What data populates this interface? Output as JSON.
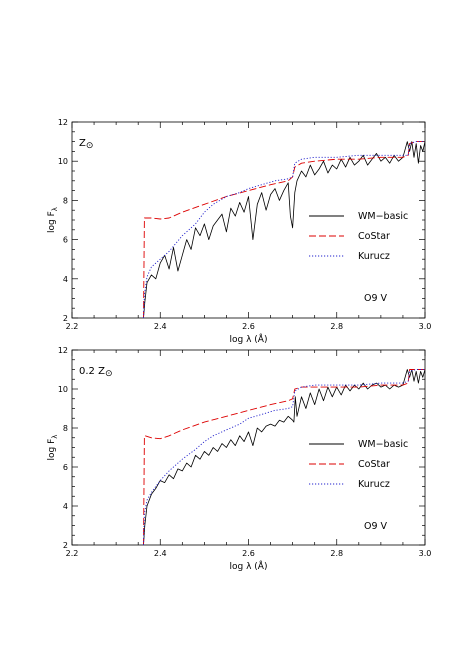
{
  "chart_data": [
    {
      "type": "line",
      "metallicity": {
        "prefix": "",
        "symbol": "Z",
        "sun": "⊙"
      },
      "spectral_type": "O9 V",
      "xlabel": "log  λ (Å)",
      "ylabel": {
        "main": "log F",
        "sub": "λ"
      },
      "xlim": [
        2.2,
        3.0
      ],
      "ylim": [
        2,
        12
      ],
      "xticks": [
        "2.2",
        "2.4",
        "2.6",
        "2.8",
        "3.0"
      ],
      "yticks": [
        "2",
        "4",
        "6",
        "8",
        "10",
        "12"
      ],
      "legend_position": "right",
      "series": [
        {
          "name": "WM−basic",
          "color": "#000000",
          "style": "solid",
          "x": [
            2.362,
            2.365,
            2.37,
            2.38,
            2.39,
            2.4,
            2.41,
            2.42,
            2.43,
            2.44,
            2.45,
            2.46,
            2.47,
            2.48,
            2.49,
            2.5,
            2.51,
            2.52,
            2.53,
            2.54,
            2.55,
            2.56,
            2.57,
            2.58,
            2.59,
            2.6,
            2.61,
            2.62,
            2.63,
            2.64,
            2.65,
            2.66,
            2.67,
            2.68,
            2.69,
            2.695,
            2.7,
            2.705,
            2.71,
            2.72,
            2.73,
            2.74,
            2.75,
            2.76,
            2.77,
            2.78,
            2.79,
            2.8,
            2.81,
            2.82,
            2.83,
            2.84,
            2.85,
            2.86,
            2.87,
            2.88,
            2.89,
            2.9,
            2.91,
            2.92,
            2.93,
            2.94,
            2.95,
            2.96,
            2.965,
            2.97,
            2.975,
            2.98,
            2.985,
            2.99,
            2.995,
            3.0
          ],
          "y": [
            2.0,
            2.8,
            3.8,
            4.2,
            4.0,
            4.8,
            5.2,
            4.5,
            5.6,
            4.4,
            5.2,
            6.0,
            5.5,
            6.6,
            6.2,
            6.8,
            6.0,
            6.7,
            7.0,
            7.3,
            6.4,
            7.6,
            7.2,
            7.9,
            7.4,
            8.2,
            6.0,
            7.8,
            8.4,
            7.5,
            8.3,
            8.6,
            8.0,
            8.5,
            8.9,
            7.2,
            6.6,
            8.4,
            9.0,
            9.5,
            9.2,
            9.8,
            9.3,
            9.6,
            10.0,
            9.4,
            9.8,
            9.6,
            10.1,
            9.7,
            10.2,
            9.8,
            10.0,
            10.3,
            9.8,
            10.1,
            10.4,
            10.0,
            10.2,
            9.9,
            10.3,
            10.0,
            10.2,
            11.0,
            10.5,
            11.0,
            10.2,
            10.9,
            9.9,
            10.8,
            10.5,
            11.0
          ]
        },
        {
          "name": "CoStar",
          "color": "#dd0000",
          "style": "dashed",
          "x": [
            2.362,
            2.364,
            2.366,
            2.38,
            2.4,
            2.42,
            2.45,
            2.5,
            2.55,
            2.6,
            2.65,
            2.69,
            2.7,
            2.705,
            2.72,
            2.75,
            2.8,
            2.85,
            2.9,
            2.95,
            2.962,
            2.965,
            2.98,
            3.0
          ],
          "y": [
            2.0,
            7.1,
            7.1,
            7.1,
            7.05,
            7.1,
            7.4,
            7.8,
            8.2,
            8.5,
            8.8,
            9.0,
            9.2,
            9.7,
            9.9,
            10.0,
            10.1,
            10.1,
            10.2,
            10.2,
            10.3,
            10.9,
            11.0,
            11.0
          ]
        },
        {
          "name": "Kurucz",
          "color": "#2222cc",
          "style": "dotted",
          "x": [
            2.362,
            2.364,
            2.37,
            2.38,
            2.4,
            2.42,
            2.45,
            2.48,
            2.5,
            2.52,
            2.55,
            2.58,
            2.6,
            2.63,
            2.66,
            2.69,
            2.7,
            2.705,
            2.72,
            2.75,
            2.8,
            2.85,
            2.9,
            2.95,
            2.962,
            2.965,
            2.98,
            3.0
          ],
          "y": [
            2.0,
            3.2,
            4.1,
            4.6,
            5.0,
            5.4,
            6.2,
            6.8,
            7.4,
            7.8,
            8.2,
            8.4,
            8.6,
            8.8,
            9.0,
            9.1,
            9.2,
            9.9,
            10.1,
            10.2,
            10.2,
            10.3,
            10.3,
            10.3,
            10.3,
            10.9,
            11.0,
            11.0
          ]
        }
      ]
    },
    {
      "type": "line",
      "metallicity": {
        "prefix": "0.2 ",
        "symbol": "Z",
        "sun": "⊙"
      },
      "spectral_type": "O9 V",
      "xlabel": "log  λ (Å)",
      "ylabel": {
        "main": "log F",
        "sub": "λ"
      },
      "xlim": [
        2.2,
        3.0
      ],
      "ylim": [
        2,
        12
      ],
      "xticks": [
        "2.2",
        "2.4",
        "2.6",
        "2.8",
        "3.0"
      ],
      "yticks": [
        "2",
        "4",
        "6",
        "8",
        "10",
        "12"
      ],
      "legend_position": "right",
      "series": [
        {
          "name": "WM−basic",
          "color": "#000000",
          "style": "solid",
          "x": [
            2.362,
            2.365,
            2.37,
            2.38,
            2.39,
            2.4,
            2.41,
            2.42,
            2.43,
            2.44,
            2.45,
            2.46,
            2.47,
            2.48,
            2.49,
            2.5,
            2.51,
            2.52,
            2.53,
            2.54,
            2.55,
            2.56,
            2.57,
            2.58,
            2.59,
            2.6,
            2.61,
            2.62,
            2.63,
            2.64,
            2.65,
            2.66,
            2.67,
            2.68,
            2.69,
            2.7,
            2.703,
            2.706,
            2.71,
            2.72,
            2.73,
            2.74,
            2.75,
            2.76,
            2.77,
            2.78,
            2.79,
            2.8,
            2.81,
            2.82,
            2.83,
            2.84,
            2.85,
            2.86,
            2.87,
            2.88,
            2.89,
            2.9,
            2.91,
            2.92,
            2.93,
            2.94,
            2.95,
            2.96,
            2.965,
            2.97,
            2.975,
            2.98,
            2.985,
            2.99,
            2.995,
            3.0
          ],
          "y": [
            2.0,
            3.0,
            4.0,
            4.6,
            4.9,
            5.3,
            5.2,
            5.6,
            5.4,
            5.9,
            5.8,
            6.2,
            6.0,
            6.6,
            6.4,
            6.8,
            6.6,
            7.0,
            6.8,
            7.2,
            7.0,
            7.4,
            7.1,
            7.6,
            7.3,
            7.8,
            7.1,
            8.0,
            7.8,
            8.1,
            8.2,
            8.1,
            8.4,
            8.3,
            8.6,
            8.4,
            8.3,
            9.6,
            8.6,
            9.6,
            9.0,
            9.8,
            9.2,
            10.0,
            9.4,
            10.1,
            9.6,
            10.1,
            9.7,
            10.2,
            9.9,
            10.2,
            10.0,
            10.3,
            10.0,
            10.2,
            10.3,
            10.1,
            10.2,
            10.0,
            10.2,
            10.1,
            10.2,
            11.0,
            10.6,
            11.0,
            10.4,
            10.9,
            10.3,
            10.9,
            10.6,
            11.0
          ]
        },
        {
          "name": "CoStar",
          "color": "#dd0000",
          "style": "dashed",
          "x": [
            2.362,
            2.364,
            2.366,
            2.38,
            2.4,
            2.42,
            2.45,
            2.5,
            2.55,
            2.6,
            2.65,
            2.69,
            2.7,
            2.705,
            2.72,
            2.75,
            2.8,
            2.85,
            2.9,
            2.95,
            2.962,
            2.965,
            2.98,
            3.0
          ],
          "y": [
            2.0,
            7.6,
            7.6,
            7.5,
            7.45,
            7.6,
            7.9,
            8.3,
            8.6,
            8.9,
            9.2,
            9.4,
            9.5,
            10.0,
            10.1,
            10.1,
            10.1,
            10.1,
            10.2,
            10.2,
            10.3,
            11.0,
            11.0,
            11.0
          ]
        },
        {
          "name": "Kurucz",
          "color": "#2222cc",
          "style": "dotted",
          "x": [
            2.362,
            2.364,
            2.37,
            2.38,
            2.4,
            2.42,
            2.45,
            2.48,
            2.5,
            2.52,
            2.55,
            2.58,
            2.6,
            2.63,
            2.66,
            2.69,
            2.7,
            2.705,
            2.72,
            2.75,
            2.8,
            2.85,
            2.9,
            2.95,
            2.962,
            2.965,
            2.98,
            3.0
          ],
          "y": [
            2.0,
            3.6,
            4.3,
            4.7,
            5.3,
            5.8,
            6.4,
            6.9,
            7.3,
            7.6,
            7.9,
            8.2,
            8.5,
            8.7,
            8.9,
            9.0,
            9.1,
            9.9,
            10.1,
            10.2,
            10.2,
            10.2,
            10.3,
            10.3,
            10.4,
            10.9,
            11.0,
            11.0
          ]
        }
      ]
    }
  ]
}
